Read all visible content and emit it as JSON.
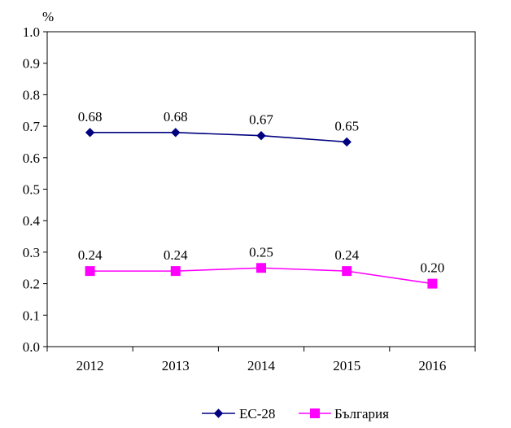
{
  "chart_data": {
    "type": "line",
    "title": "",
    "xlabel": "",
    "ylabel": "%",
    "categories": [
      "2012",
      "2013",
      "2014",
      "2015",
      "2016"
    ],
    "ylim": [
      0,
      1.0
    ],
    "yticks": [
      "0.0",
      "0.1",
      "0.2",
      "0.3",
      "0.4",
      "0.5",
      "0.6",
      "0.7",
      "0.8",
      "0.9",
      "1.0"
    ],
    "grid": false,
    "legend_position": "bottom",
    "series": [
      {
        "name": "ЕС-28",
        "color": "#000080",
        "marker": "diamond",
        "values": [
          0.68,
          0.68,
          0.67,
          0.65,
          null
        ],
        "labels": [
          "0.68",
          "0.68",
          "0.67",
          "0.65",
          null
        ]
      },
      {
        "name": "България",
        "color": "#ff00ff",
        "marker": "square",
        "values": [
          0.24,
          0.24,
          0.25,
          0.24,
          0.2
        ],
        "labels": [
          "0.24",
          "0.24",
          "0.25",
          "0.24",
          "0.20"
        ]
      }
    ]
  }
}
